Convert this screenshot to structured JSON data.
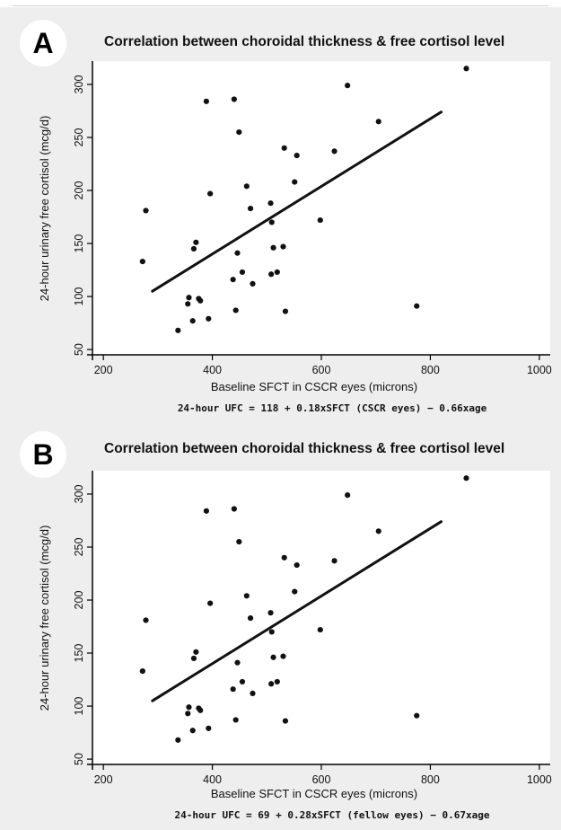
{
  "chart_data": [
    {
      "type": "scatter",
      "panel_label": "A",
      "title": "Correlation between choroidal thickness & free cortisol level",
      "xlabel": "Baseline SFCT in CSCR eyes (microns)",
      "ylabel": "24-hour urinary free cortisol (mcg/d)",
      "equation": "24-hour UFC = 118 + 0.18xSFCT (CSCR eyes) − 0.66xage",
      "xlim": [
        180,
        1020
      ],
      "ylim": [
        45,
        322
      ],
      "xticks": [
        200,
        400,
        600,
        800,
        1000
      ],
      "yticks": [
        50,
        100,
        150,
        200,
        250,
        300
      ],
      "grid": false,
      "points": [
        {
          "x": 272,
          "y": 133
        },
        {
          "x": 278,
          "y": 181
        },
        {
          "x": 337,
          "y": 68
        },
        {
          "x": 355,
          "y": 93
        },
        {
          "x": 357,
          "y": 99
        },
        {
          "x": 364,
          "y": 77
        },
        {
          "x": 366,
          "y": 145
        },
        {
          "x": 370,
          "y": 151
        },
        {
          "x": 375,
          "y": 98
        },
        {
          "x": 378,
          "y": 96
        },
        {
          "x": 389,
          "y": 284
        },
        {
          "x": 393,
          "y": 79
        },
        {
          "x": 396,
          "y": 197
        },
        {
          "x": 438,
          "y": 116
        },
        {
          "x": 440,
          "y": 286
        },
        {
          "x": 443,
          "y": 87
        },
        {
          "x": 446,
          "y": 141
        },
        {
          "x": 449,
          "y": 255
        },
        {
          "x": 455,
          "y": 123
        },
        {
          "x": 463,
          "y": 204
        },
        {
          "x": 470,
          "y": 183
        },
        {
          "x": 474,
          "y": 112
        },
        {
          "x": 507,
          "y": 188
        },
        {
          "x": 508,
          "y": 121
        },
        {
          "x": 509,
          "y": 170
        },
        {
          "x": 512,
          "y": 146
        },
        {
          "x": 519,
          "y": 123
        },
        {
          "x": 530,
          "y": 147
        },
        {
          "x": 532,
          "y": 240
        },
        {
          "x": 534,
          "y": 86
        },
        {
          "x": 551,
          "y": 208
        },
        {
          "x": 555,
          "y": 233
        },
        {
          "x": 598,
          "y": 172
        },
        {
          "x": 624,
          "y": 237
        },
        {
          "x": 648,
          "y": 299
        },
        {
          "x": 705,
          "y": 265
        },
        {
          "x": 775,
          "y": 91
        },
        {
          "x": 866,
          "y": 315
        }
      ],
      "fit_line": [
        {
          "x": 290,
          "y": 105
        },
        {
          "x": 820,
          "y": 274
        }
      ]
    },
    {
      "type": "scatter",
      "panel_label": "B",
      "title": "Correlation between choroidal thickness & free cortisol level",
      "xlabel": "Baseline SFCT in CSCR eyes (microns)",
      "ylabel": "24-hour urinary free cortisol (mcg/d)",
      "equation": "24-hour UFC = 69 + 0.28xSFCT (fellow eyes) − 0.67xage",
      "xlim": [
        180,
        1020
      ],
      "ylim": [
        45,
        322
      ],
      "xticks": [
        200,
        400,
        600,
        800,
        1000
      ],
      "yticks": [
        50,
        100,
        150,
        200,
        250,
        300
      ],
      "grid": false,
      "points": [
        {
          "x": 272,
          "y": 133
        },
        {
          "x": 278,
          "y": 181
        },
        {
          "x": 337,
          "y": 68
        },
        {
          "x": 355,
          "y": 93
        },
        {
          "x": 357,
          "y": 99
        },
        {
          "x": 364,
          "y": 77
        },
        {
          "x": 366,
          "y": 145
        },
        {
          "x": 370,
          "y": 151
        },
        {
          "x": 375,
          "y": 98
        },
        {
          "x": 378,
          "y": 96
        },
        {
          "x": 389,
          "y": 284
        },
        {
          "x": 393,
          "y": 79
        },
        {
          "x": 396,
          "y": 197
        },
        {
          "x": 438,
          "y": 116
        },
        {
          "x": 440,
          "y": 286
        },
        {
          "x": 443,
          "y": 87
        },
        {
          "x": 446,
          "y": 141
        },
        {
          "x": 449,
          "y": 255
        },
        {
          "x": 455,
          "y": 123
        },
        {
          "x": 463,
          "y": 204
        },
        {
          "x": 470,
          "y": 183
        },
        {
          "x": 474,
          "y": 112
        },
        {
          "x": 507,
          "y": 188
        },
        {
          "x": 508,
          "y": 121
        },
        {
          "x": 509,
          "y": 170
        },
        {
          "x": 512,
          "y": 146
        },
        {
          "x": 519,
          "y": 123
        },
        {
          "x": 530,
          "y": 147
        },
        {
          "x": 532,
          "y": 240
        },
        {
          "x": 534,
          "y": 86
        },
        {
          "x": 551,
          "y": 208
        },
        {
          "x": 555,
          "y": 233
        },
        {
          "x": 598,
          "y": 172
        },
        {
          "x": 624,
          "y": 237
        },
        {
          "x": 648,
          "y": 299
        },
        {
          "x": 705,
          "y": 265
        },
        {
          "x": 775,
          "y": 91
        },
        {
          "x": 866,
          "y": 315
        }
      ],
      "fit_line": [
        {
          "x": 290,
          "y": 105
        },
        {
          "x": 820,
          "y": 274
        }
      ]
    }
  ]
}
